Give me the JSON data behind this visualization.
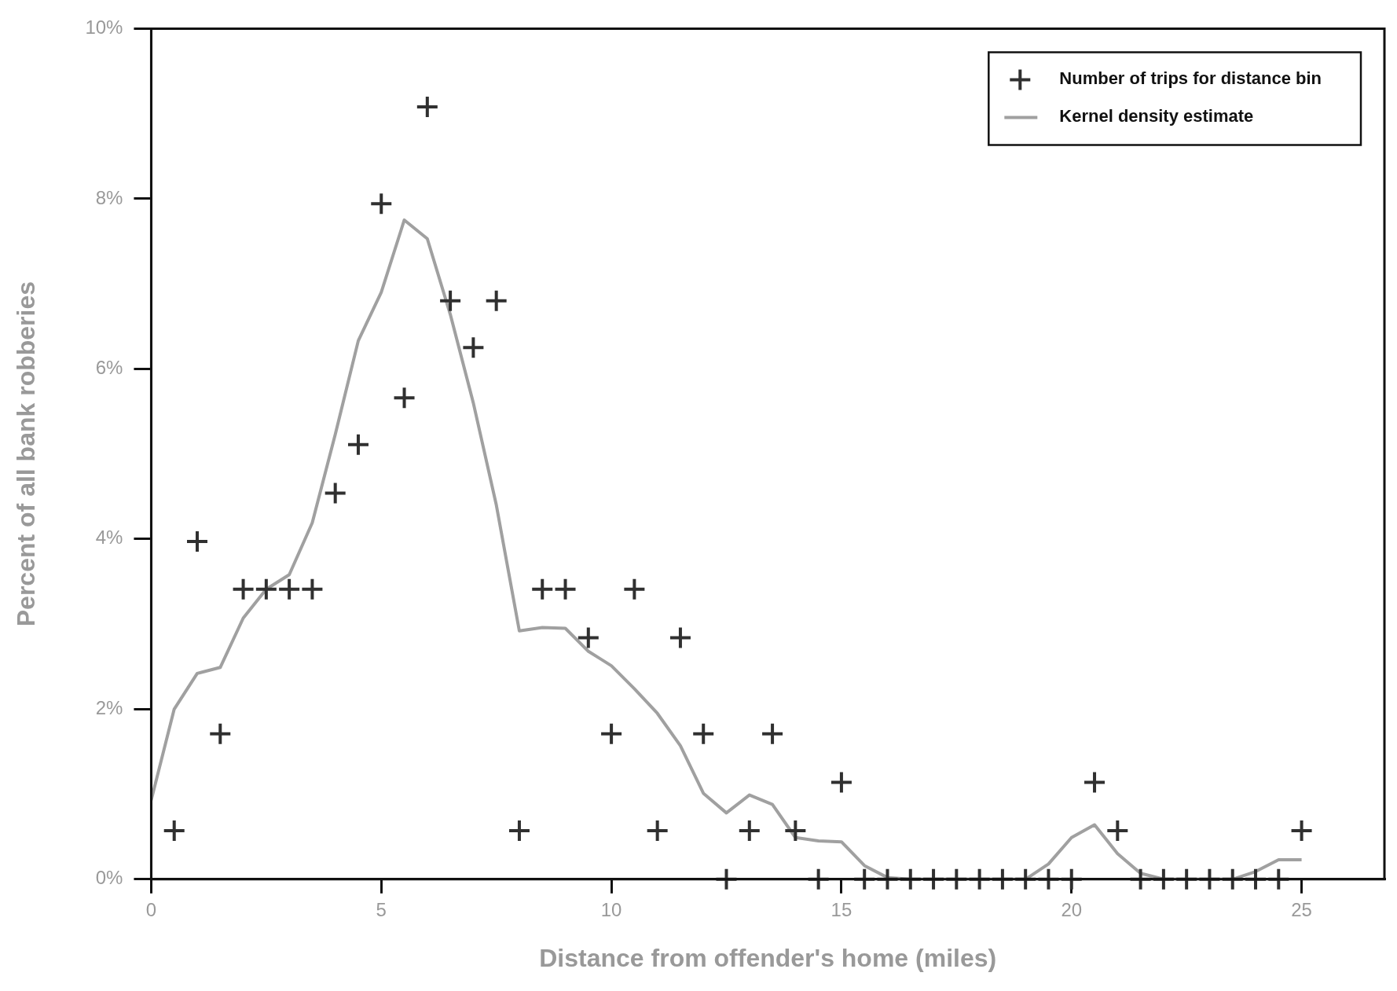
{
  "chart_data": {
    "type": "scatter",
    "xlabel": "Distance from offender's home (miles)",
    "ylabel": "Percent of all bank robberies",
    "xlim": [
      0,
      26.8
    ],
    "xticks": [
      0,
      5,
      10,
      15,
      20,
      25
    ],
    "ylim": [
      0,
      10
    ],
    "yticks": [
      {
        "value": 0,
        "label": "0%"
      },
      {
        "value": 2,
        "label": "2%"
      },
      {
        "value": 4,
        "label": "4%"
      },
      {
        "value": 6,
        "label": "6%"
      },
      {
        "value": 8,
        "label": "8%"
      },
      {
        "value": 10,
        "label": "10%"
      }
    ],
    "grid": false,
    "legend": "top right",
    "series": [
      {
        "name": "Number of trips for distance bin",
        "marker": "cross",
        "color": "#303030",
        "x": [
          0.5,
          1,
          1.5,
          2,
          2.5,
          3,
          3.5,
          4,
          4.5,
          5,
          5.5,
          6,
          6.5,
          7,
          7.5,
          8,
          8.5,
          9,
          9.5,
          10,
          10.5,
          11,
          11.5,
          12,
          12.5,
          13,
          13.5,
          14,
          14.5,
          15,
          15.5,
          16,
          16.5,
          17,
          17.5,
          18,
          18.5,
          19,
          19.5,
          20,
          20.5,
          21,
          21.5,
          22,
          22.5,
          23,
          23.5,
          24,
          24.5,
          25
        ],
        "values": [
          0.57,
          3.97,
          1.71,
          3.41,
          3.41,
          3.41,
          3.41,
          4.54,
          5.11,
          7.94,
          5.66,
          9.08,
          6.8,
          6.25,
          6.8,
          0.57,
          3.41,
          3.41,
          2.84,
          1.71,
          3.41,
          0.57,
          2.84,
          1.71,
          0,
          0.57,
          1.71,
          0.57,
          0,
          1.14,
          0,
          0,
          0,
          0,
          0,
          0,
          0,
          0,
          0,
          0,
          1.14,
          0.57,
          0,
          0,
          0,
          0,
          0,
          0,
          0,
          0.57
        ]
      },
      {
        "name": "Kernel density estimate",
        "type": "line",
        "marker": "none",
        "color": "#a0a0a0",
        "x": [
          0,
          0.5,
          1,
          1.5,
          2,
          2.5,
          3,
          3.5,
          4,
          4.5,
          5,
          5.5,
          6,
          6.5,
          7,
          7.5,
          8,
          8.5,
          9,
          9.5,
          10,
          10.5,
          11,
          11.5,
          12,
          12.5,
          13,
          13.5,
          14,
          14.5,
          15,
          15.5,
          16,
          16.5,
          17,
          17.5,
          18,
          18.5,
          19,
          19.5,
          20,
          20.5,
          21,
          21.5,
          22,
          22.5,
          23,
          23.5,
          24,
          24.5,
          25
        ],
        "values": [
          0.93,
          2.0,
          2.42,
          2.49,
          3.07,
          3.41,
          3.58,
          4.19,
          5.23,
          6.33,
          6.9,
          7.75,
          7.53,
          6.64,
          5.6,
          4.4,
          2.92,
          2.96,
          2.95,
          2.68,
          2.51,
          2.24,
          1.95,
          1.57,
          1.01,
          0.78,
          0.99,
          0.88,
          0.49,
          0.45,
          0.44,
          0.16,
          0.02,
          0,
          0,
          0,
          0,
          0,
          0,
          0.18,
          0.49,
          0.64,
          0.3,
          0.07,
          0,
          0,
          0,
          0,
          0.09,
          0.23,
          0.23
        ]
      }
    ]
  }
}
